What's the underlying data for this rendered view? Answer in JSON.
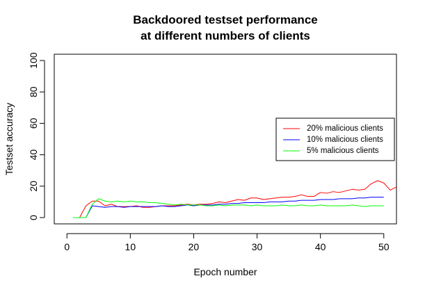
{
  "chart_data": {
    "type": "line",
    "title_line1": "Backdoored testset performance",
    "title_line2": "at different numbers of clients",
    "xlabel": "Epoch number",
    "ylabel": "Testset accuracy",
    "xlim": [
      -2,
      52
    ],
    "ylim": [
      -4,
      104
    ],
    "xticks": [
      0,
      10,
      20,
      30,
      40,
      50
    ],
    "yticks": [
      0,
      20,
      40,
      60,
      80,
      100
    ],
    "grid": false,
    "legend_position": "right",
    "series": [
      {
        "name": "20% malicious clients",
        "color": "#ff0000",
        "x": [
          1,
          2,
          3,
          4,
          5,
          6,
          7,
          8,
          9,
          10,
          11,
          12,
          13,
          14,
          15,
          16,
          17,
          18,
          19,
          20,
          21,
          22,
          23,
          24,
          25,
          26,
          27,
          28,
          29,
          30,
          31,
          32,
          33,
          34,
          35,
          36,
          37,
          38,
          39,
          40,
          41,
          42,
          43,
          44,
          45,
          46,
          47,
          48,
          49,
          50,
          51,
          52
        ],
        "values": [
          0,
          0,
          7.5,
          10.5,
          10.5,
          7.5,
          8.5,
          7,
          7,
          7,
          7.5,
          6.5,
          6.5,
          7,
          7.5,
          7.5,
          7.5,
          8,
          8.5,
          8,
          8.5,
          8.5,
          9,
          10,
          9.5,
          10.5,
          11.5,
          11,
          12.5,
          12.5,
          11.5,
          12,
          12.5,
          13,
          13,
          13.5,
          14.5,
          13.5,
          13.5,
          16,
          15.5,
          16.5,
          16,
          17,
          18,
          17.5,
          18,
          21.5,
          23.5,
          22,
          17.5,
          19.5
        ]
      },
      {
        "name": "10% malicious clients",
        "color": "#0000ff",
        "x": [
          1,
          2,
          3,
          4,
          5,
          6,
          7,
          8,
          9,
          10,
          11,
          12,
          13,
          14,
          15,
          16,
          17,
          18,
          19,
          20,
          21,
          22,
          23,
          24,
          25,
          26,
          27,
          28,
          29,
          30,
          31,
          32,
          33,
          34,
          35,
          36,
          37,
          38,
          39,
          40,
          41,
          42,
          43,
          44,
          45,
          46,
          47,
          48,
          49,
          50
        ],
        "values": [
          0,
          0,
          0,
          7.5,
          7,
          6.5,
          7,
          7,
          6.5,
          7,
          7,
          7,
          7,
          7,
          7.5,
          7,
          7,
          7.5,
          8,
          7.5,
          8,
          8,
          8,
          8.5,
          8.5,
          9,
          9,
          9.5,
          9.5,
          9.5,
          9.5,
          10,
          10,
          10,
          10.5,
          10.5,
          11,
          11,
          11,
          11.5,
          11.5,
          11.5,
          12,
          12,
          12,
          12.5,
          12.5,
          13,
          13,
          13
        ]
      },
      {
        "name": "5% malicious clients",
        "color": "#00ff00",
        "x": [
          1,
          2,
          3,
          4,
          5,
          6,
          7,
          8,
          9,
          10,
          11,
          12,
          13,
          14,
          15,
          16,
          17,
          18,
          19,
          20,
          21,
          22,
          23,
          24,
          25,
          26,
          27,
          28,
          29,
          30,
          31,
          32,
          33,
          34,
          35,
          36,
          37,
          38,
          39,
          40,
          41,
          42,
          43,
          44,
          45,
          46,
          47,
          48,
          49,
          50
        ],
        "values": [
          0,
          0,
          0,
          8.5,
          12,
          10.5,
          10,
          10.5,
          10,
          10.5,
          10,
          10,
          9.5,
          9.5,
          9,
          8.5,
          8,
          8.5,
          8,
          8,
          8,
          7.5,
          7.5,
          8,
          7.5,
          8,
          8,
          8,
          7.5,
          8,
          7.5,
          7.5,
          7.5,
          8,
          7.5,
          7.5,
          8,
          7.5,
          7.5,
          8,
          7.5,
          7.5,
          7.5,
          7.5,
          8,
          7.5,
          7,
          7.5,
          7.5,
          7.5
        ]
      }
    ]
  }
}
